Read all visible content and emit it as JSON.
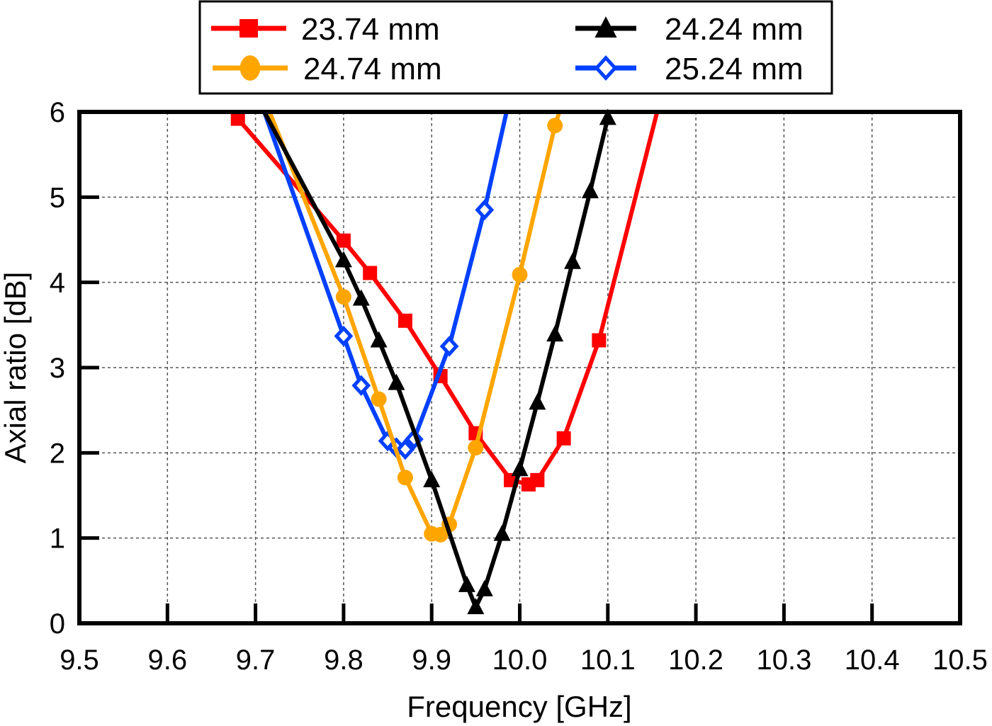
{
  "chart_data": {
    "type": "line",
    "title": "",
    "xlabel": "Frequency [GHz]",
    "ylabel": "Axial ratio [dB]",
    "xlim": [
      9.5,
      10.5
    ],
    "ylim": [
      0,
      6
    ],
    "xticks": [
      "9.5",
      "9.6",
      "9.7",
      "9.8",
      "9.9",
      "10.0",
      "10.1",
      "10.2",
      "10.3",
      "10.4",
      "10.5"
    ],
    "yticks": [
      "0",
      "1",
      "2",
      "3",
      "4",
      "5",
      "6"
    ],
    "grid": true,
    "legend_position": "top, outside plot, 2 columns",
    "series": [
      {
        "name": "23.74 mm",
        "color": "#ff0000",
        "marker": "square",
        "x": [
          9.68,
          9.8,
          9.83,
          9.87,
          9.91,
          9.95,
          9.99,
          10.01,
          10.02,
          10.05,
          10.09
        ],
        "y": [
          5.92,
          4.49,
          4.11,
          3.55,
          2.9,
          2.23,
          1.68,
          1.63,
          1.68,
          2.17,
          3.32
        ],
        "line_end": [
          10.156,
          6.0
        ]
      },
      {
        "name": "24.24 mm",
        "color": "#000000",
        "marker": "triangle",
        "line_start": [
          9.71,
          6.0
        ],
        "x": [
          9.8,
          9.82,
          9.84,
          9.86,
          9.9,
          9.94,
          9.95,
          9.96,
          9.98,
          10.0,
          10.02,
          10.04,
          10.06,
          10.08,
          10.1
        ],
        "y": [
          4.26,
          3.81,
          3.32,
          2.82,
          1.68,
          0.45,
          0.19,
          0.4,
          1.05,
          1.81,
          2.59,
          3.39,
          4.24,
          5.07,
          5.93
        ]
      },
      {
        "name": "24.74 mm",
        "color": "#ffa500",
        "marker": "circle",
        "line_start": [
          9.716,
          6.0
        ],
        "x": [
          9.8,
          9.84,
          9.87,
          9.9,
          9.91,
          9.92,
          9.95,
          10.0,
          10.04
        ],
        "y": [
          3.83,
          2.63,
          1.71,
          1.05,
          1.04,
          1.16,
          2.06,
          4.09,
          5.84
        ],
        "line_end": [
          10.045,
          6.0
        ]
      },
      {
        "name": "25.24 mm",
        "color": "#0040ff",
        "marker": "diamond-open",
        "line_start": [
          9.71,
          6.0
        ],
        "x": [
          9.8,
          9.82,
          9.85,
          9.86,
          9.87,
          9.88,
          9.92,
          9.96
        ],
        "y": [
          3.37,
          2.79,
          2.14,
          2.06,
          2.04,
          2.16,
          3.25,
          4.85
        ],
        "line_end": [
          9.985,
          6.0
        ]
      }
    ]
  }
}
